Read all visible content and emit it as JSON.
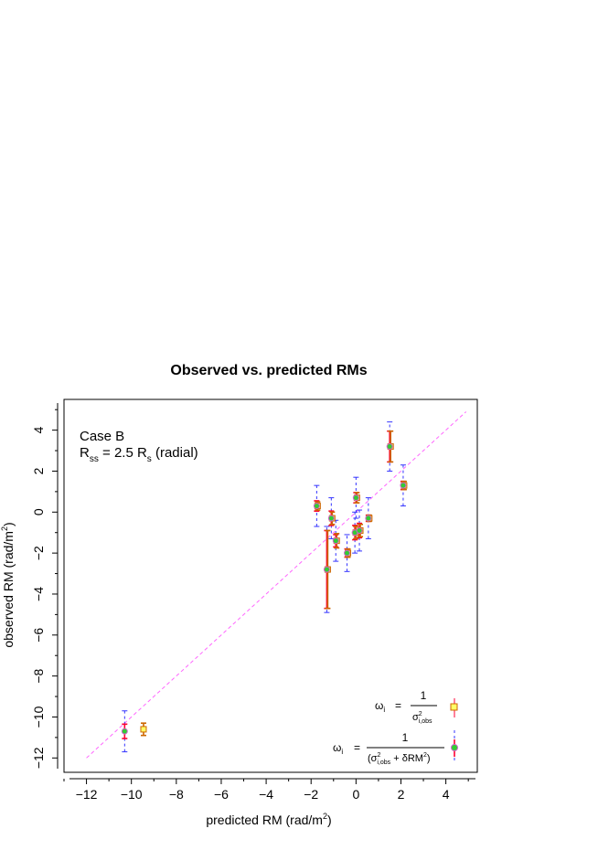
{
  "chart_data": {
    "type": "scatter",
    "title": "Observed vs. predicted RMs",
    "xlabel": "predicted RM (rad/m",
    "xlabel_sup": "2",
    "xlabel_end": ")",
    "ylabel": "observed RM (rad/m",
    "ylabel_sup": "2",
    "ylabel_end": ")",
    "xlim": [
      -13.0,
      5.4
    ],
    "ylim": [
      -12.7,
      5.5
    ],
    "xticks": [
      -12,
      -10,
      -8,
      -6,
      -4,
      -2,
      0,
      2,
      4
    ],
    "xtick_labels": [
      "−12",
      "−10",
      "−8",
      "−6",
      "−4",
      "−2",
      "0",
      "2",
      "4"
    ],
    "yticks": [
      -12,
      -10,
      -8,
      -6,
      -4,
      -2,
      0,
      2,
      4
    ],
    "ytick_labels": [
      "−12",
      "−10",
      "−8",
      "−6",
      "−4",
      "−2",
      "0",
      "2",
      "4"
    ],
    "grid": false,
    "reference_line": {
      "from": [
        -12,
        -12
      ],
      "to": [
        4.9,
        4.9
      ],
      "color": "#ff66ff",
      "style": "dashed"
    },
    "annotation": {
      "line1": "Case  B",
      "line2_main": "R",
      "line2_sub": "ss",
      "line2_mid": " =  2.5  R",
      "line2_sub2": "s",
      "line2_end": " (radial)"
    },
    "legend": {
      "position": "bottom-right",
      "entry1": {
        "lhs": "ω",
        "lhs_sub": "i",
        "eq": "=",
        "num": "1",
        "den": "σ",
        "den_sup": "2",
        "den_sub": "i,obs",
        "marker": "square"
      },
      "entry2": {
        "lhs": "ω",
        "lhs_sub": "i",
        "eq": "=",
        "num": "1",
        "den_open": "(σ",
        "den_sup": "2",
        "den_sub": "i,obs",
        "den_rest": " + δRM",
        "den_sup2": "2",
        "den_close": ")",
        "marker": "circle"
      }
    },
    "colors": {
      "square_fill": "#ffff66",
      "square_edge": "#cc6600",
      "circle_fill": "#33cc33",
      "circle_edge": "#cc66cc",
      "obs_errorbar": "#ff0033",
      "model_errorbar": "#3333ff"
    },
    "series": [
      {
        "marker": "square",
        "x": [
          -9.5,
          -1.3,
          1.5,
          2.1,
          -1.1,
          -0.9,
          -0.4,
          0.0,
          -0.05,
          0.15,
          0.55,
          -1.75
        ],
        "y": [
          -10.6,
          -2.8,
          3.2,
          1.3,
          -0.3,
          -1.4,
          -2.0,
          0.7,
          -1.0,
          -0.9,
          -0.3,
          0.3
        ],
        "err": [
          0.3,
          1.9,
          0.75,
          0.2,
          0.3,
          0.35,
          0.2,
          0.25,
          0.3,
          0.3,
          0.15,
          0.2
        ]
      },
      {
        "marker": "circle",
        "x": [
          -10.3,
          -1.3,
          1.5,
          2.1,
          -1.1,
          -0.9,
          -0.4,
          0.0,
          -0.05,
          0.15,
          0.55,
          -1.75
        ],
        "y": [
          -10.7,
          -2.8,
          3.2,
          1.3,
          -0.3,
          -1.4,
          -2.0,
          0.7,
          -1.0,
          -0.9,
          -0.3,
          0.3
        ],
        "obs_err": [
          0.35,
          1.9,
          0.75,
          0.2,
          0.35,
          0.3,
          0.2,
          0.25,
          0.35,
          0.35,
          0.15,
          0.25
        ],
        "total_err": [
          1.0,
          2.1,
          1.2,
          1.0,
          1.0,
          1.0,
          0.9,
          1.0,
          1.0,
          1.0,
          1.0,
          1.0
        ]
      }
    ]
  }
}
